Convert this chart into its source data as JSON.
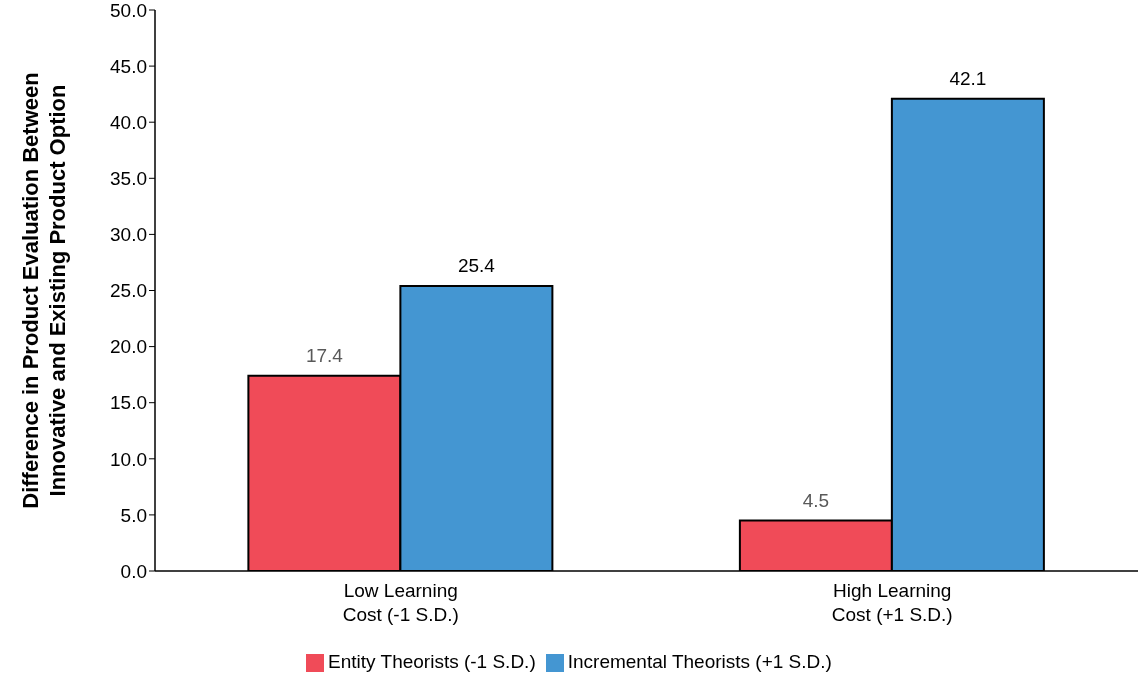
{
  "chart_data": {
    "type": "bar",
    "ylabel": "Difference in Product Evaluation Between\nInnovative and Existing Product Option",
    "categories": [
      "Low Learning\nCost (-1 S.D.)",
      "High Learning\nCost (+1 S.D.)"
    ],
    "series": [
      {
        "name": "Entity Theorists (-1 S.D.)",
        "color": "#f04b58",
        "values": [
          17.4,
          4.5
        ]
      },
      {
        "name": "Incremental Theorists (+1 S.D.)",
        "color": "#4496d2",
        "values": [
          25.4,
          42.1
        ]
      }
    ],
    "ylim": [
      0,
      50
    ],
    "yticks": [
      {
        "value": 0,
        "label": "0.0"
      },
      {
        "value": 5,
        "label": "5.0"
      },
      {
        "value": 10,
        "label": "10.0"
      },
      {
        "value": 15,
        "label": "15.0"
      },
      {
        "value": 20,
        "label": "20.0"
      },
      {
        "value": 25,
        "label": "25.0"
      },
      {
        "value": 30,
        "label": "30.0"
      },
      {
        "value": 35,
        "label": "35.0"
      },
      {
        "value": 40,
        "label": "40.0"
      },
      {
        "value": 45,
        "label": "45.0"
      },
      {
        "value": 50,
        "label": "50.0"
      }
    ],
    "data_labels": true,
    "legend": "bottom"
  }
}
